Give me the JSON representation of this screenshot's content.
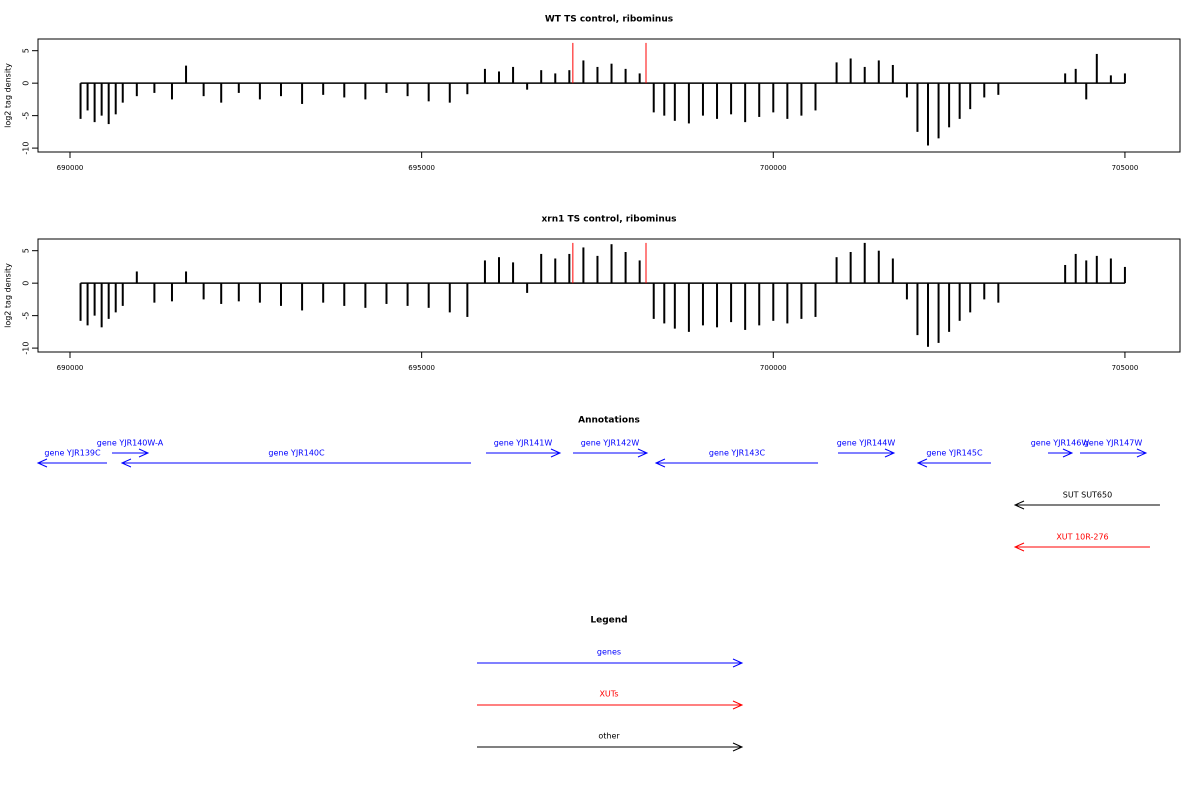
{
  "chart_data": [
    {
      "type": "bar",
      "title": "WT TS control, ribominus",
      "y_label": "log2 tag density",
      "xlim": [
        689545,
        705783
      ],
      "xticks": [
        690000,
        695000,
        700000,
        705000
      ],
      "ylim": [
        -10.6,
        6.8
      ],
      "yticks": [
        5,
        0,
        -5,
        -10
      ],
      "color": "#000000",
      "x": [
        690150,
        690250,
        690350,
        690450,
        690550,
        690650,
        690750,
        690950,
        691200,
        691450,
        691650,
        691900,
        692150,
        692400,
        692700,
        693000,
        693300,
        693600,
        693900,
        694200,
        694500,
        694800,
        695100,
        695400,
        695650,
        695900,
        696100,
        696300,
        696500,
        696700,
        696900,
        697100,
        697300,
        697500,
        697700,
        697900,
        698100,
        698300,
        698450,
        698600,
        698800,
        699000,
        699200,
        699400,
        699600,
        699800,
        700000,
        700200,
        700400,
        700600,
        700900,
        701100,
        701300,
        701500,
        701700,
        701900,
        702050,
        702200,
        702350,
        702500,
        702650,
        702800,
        703000,
        703200,
        704150,
        704300,
        704450,
        704600,
        704800,
        705000
      ],
      "values": [
        -5.5,
        -4.2,
        -6,
        -5,
        -6.3,
        -4.8,
        -3,
        -2,
        -1.5,
        -2.5,
        2.7,
        -2,
        -3,
        -1.5,
        -2.5,
        -2,
        -3.2,
        -1.8,
        -2.2,
        -2.5,
        -1.5,
        -2,
        -2.8,
        -3,
        -1.7,
        2.2,
        1.8,
        2.5,
        -1,
        2,
        1.5,
        2,
        3.5,
        2.5,
        3,
        2.2,
        1.5,
        -4.5,
        -5,
        -5.8,
        -6.2,
        -5,
        -5.5,
        -4.8,
        -6,
        -5.2,
        -4.5,
        -5.5,
        -5,
        -4.2,
        3.2,
        3.8,
        2.5,
        3.5,
        2.8,
        -2.2,
        -7.5,
        -9.6,
        -8.5,
        -6.8,
        -5.5,
        -4,
        -2.2,
        -1.8,
        1.5,
        2.2,
        -2.5,
        4.5,
        1.2,
        1.5
      ],
      "highlights": {
        "color": "#ff0000",
        "x": [
          697150,
          698190
        ],
        "values": [
          6.2,
          6.2
        ]
      }
    },
    {
      "type": "bar",
      "title": "xrn1 TS control, ribominus",
      "y_label": "log2 tag density",
      "xlim": [
        689545,
        705783
      ],
      "xticks": [
        690000,
        695000,
        700000,
        705000
      ],
      "ylim": [
        -10.6,
        6.8
      ],
      "yticks": [
        5,
        0,
        -5,
        -10
      ],
      "color": "#000000",
      "x": [
        690150,
        690250,
        690350,
        690450,
        690550,
        690650,
        690750,
        690950,
        691200,
        691450,
        691650,
        691900,
        692150,
        692400,
        692700,
        693000,
        693300,
        693600,
        693900,
        694200,
        694500,
        694800,
        695100,
        695400,
        695650,
        695900,
        696100,
        696300,
        696500,
        696700,
        696900,
        697100,
        697300,
        697500,
        697700,
        697900,
        698100,
        698300,
        698450,
        698600,
        698800,
        699000,
        699200,
        699400,
        699600,
        699800,
        700000,
        700200,
        700400,
        700600,
        700900,
        701100,
        701300,
        701500,
        701700,
        701900,
        702050,
        702200,
        702350,
        702500,
        702650,
        702800,
        703000,
        703200,
        704150,
        704300,
        704450,
        704600,
        704800,
        705000
      ],
      "values": [
        -5.8,
        -6.5,
        -5,
        -6.8,
        -5.5,
        -4.5,
        -3.5,
        1.8,
        -3,
        -2.8,
        1.8,
        -2.5,
        -3.2,
        -2.8,
        -3,
        -3.5,
        -4.2,
        -3,
        -3.5,
        -3.8,
        -3.2,
        -3.5,
        -3.8,
        -4.5,
        -5.2,
        3.5,
        4,
        3.2,
        -1.5,
        4.5,
        3.8,
        4.5,
        5.5,
        4.2,
        6,
        4.8,
        3.5,
        -5.5,
        -6.2,
        -7,
        -7.5,
        -6.5,
        -6.8,
        -6,
        -7.2,
        -6.5,
        -5.8,
        -6.2,
        -5.5,
        -5.2,
        4,
        4.8,
        6.2,
        5,
        3.8,
        -2.5,
        -8,
        -9.8,
        -9.2,
        -7.5,
        -5.8,
        -4.5,
        -2.5,
        -3,
        2.8,
        4.5,
        3.5,
        4.2,
        3.8,
        2.5
      ],
      "highlights": {
        "color": "#ff0000",
        "x": [
          697150,
          698190
        ],
        "values": [
          6.2,
          6.2
        ]
      }
    }
  ],
  "annotations": {
    "title": "Annotations",
    "features": [
      {
        "label": "gene YJR139C",
        "start": 689545,
        "end": 690526,
        "strand": "-",
        "color": "#0000ff"
      },
      {
        "label": "gene YJR140W-A",
        "start": 690597,
        "end": 691109,
        "strand": "+",
        "color": "#0000ff"
      },
      {
        "label": "gene YJR140C",
        "start": 690739,
        "end": 695702,
        "strand": "-",
        "color": "#0000ff"
      },
      {
        "label": "gene YJR141W",
        "start": 695915,
        "end": 696967,
        "strand": "+",
        "color": "#0000ff"
      },
      {
        "label": "gene YJR142W",
        "start": 697152,
        "end": 698204,
        "strand": "+",
        "color": "#0000ff"
      },
      {
        "label": "gene YJR143C",
        "start": 698332,
        "end": 700636,
        "strand": "-",
        "color": "#0000ff"
      },
      {
        "label": "gene YJR144W",
        "start": 700920,
        "end": 701716,
        "strand": "+",
        "color": "#0000ff"
      },
      {
        "label": "gene YJR145C",
        "start": 702057,
        "end": 703095,
        "strand": "-",
        "color": "#0000ff"
      },
      {
        "label": "gene YJR146W",
        "start": 703906,
        "end": 704247,
        "strand": "+",
        "color": "#0000ff"
      },
      {
        "label": "gene YJR147W",
        "start": 704361,
        "end": 705299,
        "strand": "+",
        "color": "#0000ff"
      },
      {
        "label": "SUT SUT650",
        "start": 703437,
        "end": 705498,
        "strand": "-",
        "color": "#000000"
      },
      {
        "label": "XUT 10R-276",
        "start": 703437,
        "end": 705356,
        "strand": "-",
        "color": "#ff0000"
      }
    ]
  },
  "legend": {
    "title": "Legend",
    "items": [
      {
        "name": "genes",
        "color": "#0000ff"
      },
      {
        "name": "XUTs",
        "color": "#ff0000"
      },
      {
        "name": "other",
        "color": "#000000"
      }
    ]
  }
}
